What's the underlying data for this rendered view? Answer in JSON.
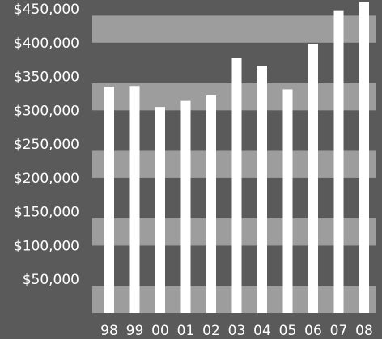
{
  "chart_data": {
    "type": "bar",
    "title": "",
    "xlabel": "",
    "ylabel": "",
    "categories": [
      "98",
      "99",
      "00",
      "01",
      "02",
      "03",
      "04",
      "05",
      "06",
      "07",
      "08"
    ],
    "values": [
      335000,
      336000,
      305000,
      314000,
      322000,
      377000,
      366000,
      331000,
      398000,
      448000,
      460000
    ],
    "ylim": [
      0,
      450000
    ],
    "yticks": [
      {
        "value": 50000,
        "label": "$50,000"
      },
      {
        "value": 100000,
        "label": "$100,000"
      },
      {
        "value": 150000,
        "label": "$150,000"
      },
      {
        "value": 200000,
        "label": "$200,000"
      },
      {
        "value": 250000,
        "label": "$250,000"
      },
      {
        "value": 300000,
        "label": "$300,000"
      },
      {
        "value": 350000,
        "label": "$350,000"
      },
      {
        "value": 400000,
        "label": "$400,000"
      },
      {
        "value": 450000,
        "label": "$450,000"
      }
    ],
    "bands": [
      [
        0,
        40000
      ],
      [
        100000,
        140000
      ],
      [
        200000,
        240000
      ],
      [
        300000,
        340000
      ],
      [
        400000,
        440000
      ]
    ],
    "grid": false,
    "legend": "none",
    "colors": {
      "background": "#5a5a5b",
      "band": "#9d9d9d",
      "bar": "#ffffff",
      "text": "#ffffff"
    }
  }
}
